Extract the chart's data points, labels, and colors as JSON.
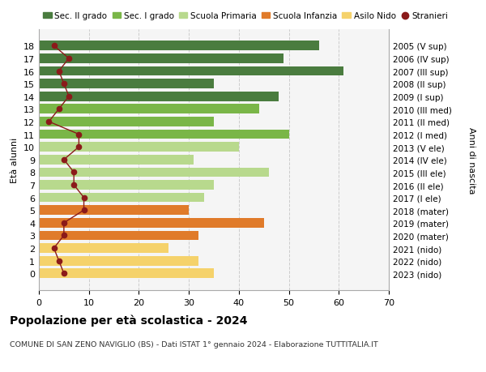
{
  "ages": [
    18,
    17,
    16,
    15,
    14,
    13,
    12,
    11,
    10,
    9,
    8,
    7,
    6,
    5,
    4,
    3,
    2,
    1,
    0
  ],
  "right_labels": [
    "2005 (V sup)",
    "2006 (IV sup)",
    "2007 (III sup)",
    "2008 (II sup)",
    "2009 (I sup)",
    "2010 (III med)",
    "2011 (II med)",
    "2012 (I med)",
    "2013 (V ele)",
    "2014 (IV ele)",
    "2015 (III ele)",
    "2016 (II ele)",
    "2017 (I ele)",
    "2018 (mater)",
    "2019 (mater)",
    "2020 (mater)",
    "2021 (nido)",
    "2022 (nido)",
    "2023 (nido)"
  ],
  "bar_values": [
    56,
    49,
    61,
    35,
    48,
    44,
    35,
    50,
    40,
    31,
    46,
    35,
    33,
    30,
    45,
    32,
    26,
    32,
    35
  ],
  "bar_colors": [
    "#4a7c3f",
    "#4a7c3f",
    "#4a7c3f",
    "#4a7c3f",
    "#4a7c3f",
    "#7ab648",
    "#7ab648",
    "#7ab648",
    "#b8d98d",
    "#b8d98d",
    "#b8d98d",
    "#b8d98d",
    "#b8d98d",
    "#e07b2a",
    "#e07b2a",
    "#e07b2a",
    "#f5d26b",
    "#f5d26b",
    "#f5d26b"
  ],
  "stranieri_values": [
    3,
    6,
    4,
    5,
    6,
    4,
    2,
    8,
    8,
    5,
    7,
    7,
    9,
    9,
    5,
    5,
    3,
    4,
    5
  ],
  "stranieri_color": "#8b1a1a",
  "legend_labels": [
    "Sec. II grado",
    "Sec. I grado",
    "Scuola Primaria",
    "Scuola Infanzia",
    "Asilo Nido",
    "Stranieri"
  ],
  "legend_colors": [
    "#4a7c3f",
    "#7ab648",
    "#b8d98d",
    "#e07b2a",
    "#f5d26b",
    "#8b1a1a"
  ],
  "title": "Popolazione per età scolastica - 2024",
  "subtitle": "COMUNE DI SAN ZENO NAVIGLIO (BS) - Dati ISTAT 1° gennaio 2024 - Elaborazione TUTTITALIA.IT",
  "ylabel": "Età alunni",
  "right_ylabel": "Anni di nascita",
  "xlim": [
    0,
    70
  ],
  "xticks": [
    0,
    10,
    20,
    30,
    40,
    50,
    60,
    70
  ],
  "background_color": "#ffffff",
  "grid_color": "#cccccc",
  "plot_bg_color": "#f5f5f5"
}
